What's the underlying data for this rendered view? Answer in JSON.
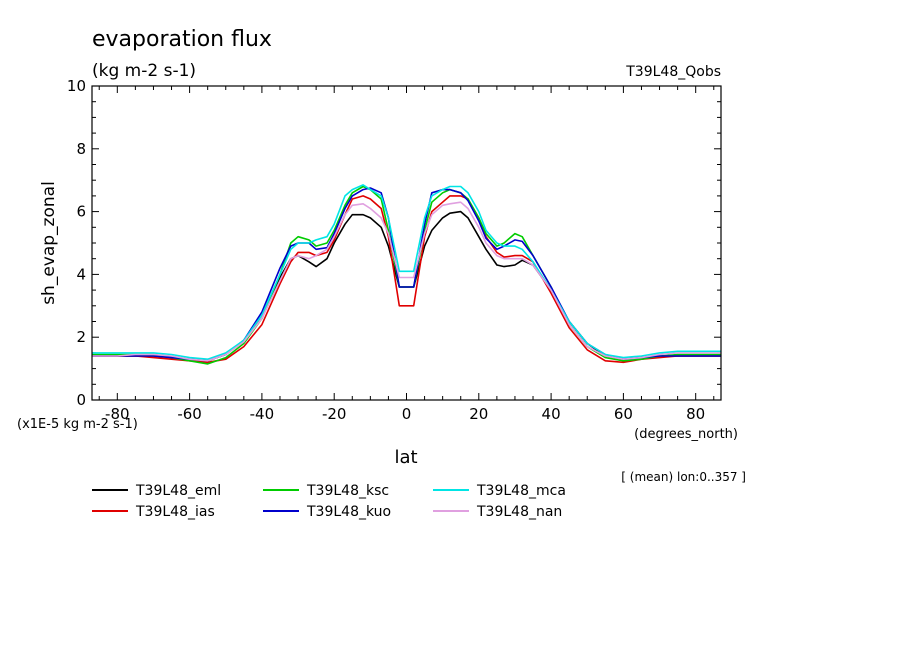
{
  "chart_data": {
    "type": "line",
    "title": "evaporation flux",
    "subtitle": "(kg m-2 s-1)",
    "experiment_label": "T39L48_Qobs",
    "ylabel": "sh_evap_zonal",
    "xlabel": "lat",
    "x_units": "(degrees_north)",
    "y_scale_note": "(x1E-5 kg m-2 s-1)",
    "mean_note": "[ (mean) lon:0..357 ]",
    "xlim": [
      -87,
      87
    ],
    "ylim": [
      0,
      10
    ],
    "x_ticks": [
      -80,
      -60,
      -40,
      -20,
      0,
      20,
      40,
      60,
      80
    ],
    "x_tick_labels": [
      "-80",
      "-60",
      "-40",
      "-20",
      "0",
      "20",
      "40",
      "60",
      "80"
    ],
    "y_ticks": [
      0,
      2,
      4,
      6,
      8,
      10
    ],
    "y_tick_labels": [
      "0",
      "2",
      "4",
      "6",
      "8",
      "10"
    ],
    "legend_placement": "bottom",
    "x": [
      -87,
      -80,
      -75,
      -70,
      -65,
      -60,
      -55,
      -50,
      -45,
      -40,
      -35,
      -32,
      -30,
      -27,
      -25,
      -22,
      -20,
      -17,
      -15,
      -12,
      -10,
      -7,
      -5,
      -2,
      0,
      2,
      5,
      7,
      10,
      12,
      15,
      17,
      20,
      22,
      25,
      27,
      30,
      32,
      35,
      40,
      45,
      50,
      55,
      60,
      65,
      70,
      75,
      80,
      87
    ],
    "series": [
      {
        "name": "T39L48_eml",
        "color": "#000000",
        "values": [
          1.4,
          1.4,
          1.4,
          1.4,
          1.35,
          1.3,
          1.25,
          1.45,
          1.9,
          2.6,
          3.9,
          4.5,
          4.6,
          4.4,
          4.25,
          4.5,
          5.0,
          5.6,
          5.9,
          5.9,
          5.8,
          5.5,
          4.9,
          3.6,
          3.6,
          3.6,
          4.9,
          5.4,
          5.8,
          5.95,
          6.0,
          5.8,
          5.2,
          4.8,
          4.3,
          4.25,
          4.3,
          4.45,
          4.3,
          3.5,
          2.5,
          1.8,
          1.4,
          1.3,
          1.35,
          1.4,
          1.4,
          1.4,
          1.4
        ]
      },
      {
        "name": "T39L48_ias",
        "color": "#e00000",
        "values": [
          1.4,
          1.4,
          1.4,
          1.35,
          1.3,
          1.25,
          1.2,
          1.3,
          1.7,
          2.4,
          3.7,
          4.4,
          4.7,
          4.7,
          4.6,
          4.7,
          5.1,
          5.9,
          6.4,
          6.5,
          6.4,
          6.1,
          5.2,
          3.0,
          3.0,
          3.0,
          5.2,
          6.0,
          6.3,
          6.5,
          6.5,
          6.4,
          5.8,
          5.2,
          4.7,
          4.55,
          4.6,
          4.6,
          4.4,
          3.4,
          2.3,
          1.6,
          1.25,
          1.2,
          1.3,
          1.35,
          1.4,
          1.4,
          1.4
        ]
      },
      {
        "name": "T39L48_ksc",
        "color": "#00cc00",
        "values": [
          1.45,
          1.45,
          1.45,
          1.45,
          1.35,
          1.25,
          1.15,
          1.35,
          1.8,
          2.6,
          4.0,
          5.0,
          5.2,
          5.1,
          4.9,
          5.0,
          5.4,
          6.2,
          6.6,
          6.8,
          6.7,
          6.4,
          5.4,
          3.6,
          3.6,
          3.6,
          5.4,
          6.3,
          6.6,
          6.7,
          6.6,
          6.4,
          5.8,
          5.3,
          4.9,
          5.0,
          5.3,
          5.2,
          4.6,
          3.6,
          2.4,
          1.7,
          1.35,
          1.25,
          1.3,
          1.4,
          1.45,
          1.45,
          1.45
        ]
      },
      {
        "name": "T39L48_kuo",
        "color": "#0000cc",
        "values": [
          1.4,
          1.4,
          1.4,
          1.4,
          1.35,
          1.3,
          1.25,
          1.45,
          1.9,
          2.8,
          4.2,
          4.9,
          5.0,
          5.0,
          4.8,
          4.85,
          5.3,
          6.1,
          6.5,
          6.7,
          6.75,
          6.6,
          5.8,
          3.6,
          3.6,
          3.6,
          5.6,
          6.6,
          6.7,
          6.7,
          6.6,
          6.35,
          5.7,
          5.15,
          4.8,
          4.9,
          5.1,
          5.05,
          4.6,
          3.6,
          2.5,
          1.8,
          1.45,
          1.3,
          1.35,
          1.4,
          1.4,
          1.4,
          1.4
        ]
      },
      {
        "name": "T39L48_mca",
        "color": "#00e5e5",
        "values": [
          1.5,
          1.5,
          1.5,
          1.5,
          1.45,
          1.35,
          1.3,
          1.5,
          1.9,
          2.7,
          4.0,
          4.8,
          5.0,
          5.0,
          5.1,
          5.2,
          5.6,
          6.5,
          6.7,
          6.85,
          6.7,
          6.5,
          5.8,
          4.1,
          4.1,
          4.1,
          5.8,
          6.5,
          6.7,
          6.8,
          6.8,
          6.6,
          6.0,
          5.4,
          5.0,
          4.9,
          4.9,
          4.8,
          4.4,
          3.5,
          2.5,
          1.8,
          1.45,
          1.35,
          1.4,
          1.5,
          1.55,
          1.55,
          1.55
        ]
      },
      {
        "name": "T39L48_nan",
        "color": "#e0a0e0",
        "values": [
          1.4,
          1.4,
          1.45,
          1.45,
          1.4,
          1.3,
          1.25,
          1.45,
          1.85,
          2.6,
          3.8,
          4.5,
          4.6,
          4.5,
          4.6,
          4.8,
          5.2,
          5.9,
          6.2,
          6.25,
          6.1,
          5.8,
          5.3,
          3.9,
          3.9,
          3.9,
          5.3,
          5.9,
          6.2,
          6.25,
          6.3,
          6.1,
          5.5,
          5.0,
          4.6,
          4.5,
          4.5,
          4.5,
          4.3,
          3.5,
          2.4,
          1.7,
          1.4,
          1.3,
          1.35,
          1.45,
          1.5,
          1.5,
          1.5
        ]
      }
    ]
  }
}
